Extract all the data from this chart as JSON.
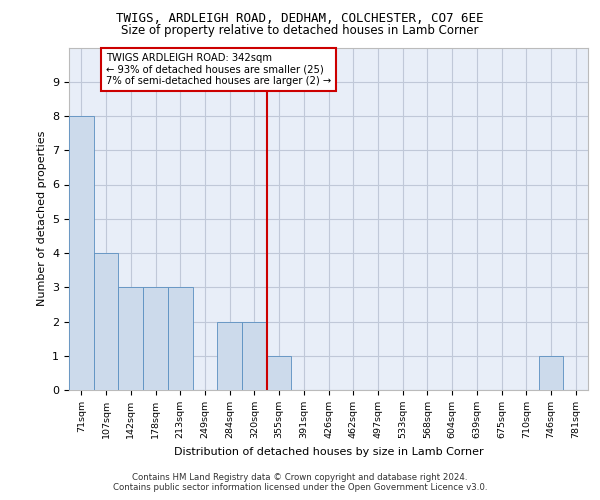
{
  "title": "TWIGS, ARDLEIGH ROAD, DEDHAM, COLCHESTER, CO7 6EE",
  "subtitle": "Size of property relative to detached houses in Lamb Corner",
  "xlabel": "Distribution of detached houses by size in Lamb Corner",
  "ylabel": "Number of detached properties",
  "categories": [
    "71sqm",
    "107sqm",
    "142sqm",
    "178sqm",
    "213sqm",
    "249sqm",
    "284sqm",
    "320sqm",
    "355sqm",
    "391sqm",
    "426sqm",
    "462sqm",
    "497sqm",
    "533sqm",
    "568sqm",
    "604sqm",
    "639sqm",
    "675sqm",
    "710sqm",
    "746sqm",
    "781sqm"
  ],
  "values": [
    8,
    4,
    3,
    3,
    3,
    0,
    2,
    2,
    1,
    0,
    0,
    0,
    0,
    0,
    0,
    0,
    0,
    0,
    0,
    1,
    0
  ],
  "bar_color": "#ccdaeb",
  "bar_edge_color": "#5a8fc0",
  "vline_x_index": 8,
  "vline_color": "#cc0000",
  "annotation_text": "TWIGS ARDLEIGH ROAD: 342sqm\n← 93% of detached houses are smaller (25)\n7% of semi-detached houses are larger (2) →",
  "annotation_box_color": "#cc0000",
  "ylim": [
    0,
    10
  ],
  "yticks": [
    0,
    1,
    2,
    3,
    4,
    5,
    6,
    7,
    8,
    9,
    10
  ],
  "grid_color": "#c0c8d8",
  "bg_color": "#e8eef8",
  "footer": "Contains HM Land Registry data © Crown copyright and database right 2024.\nContains public sector information licensed under the Open Government Licence v3.0."
}
